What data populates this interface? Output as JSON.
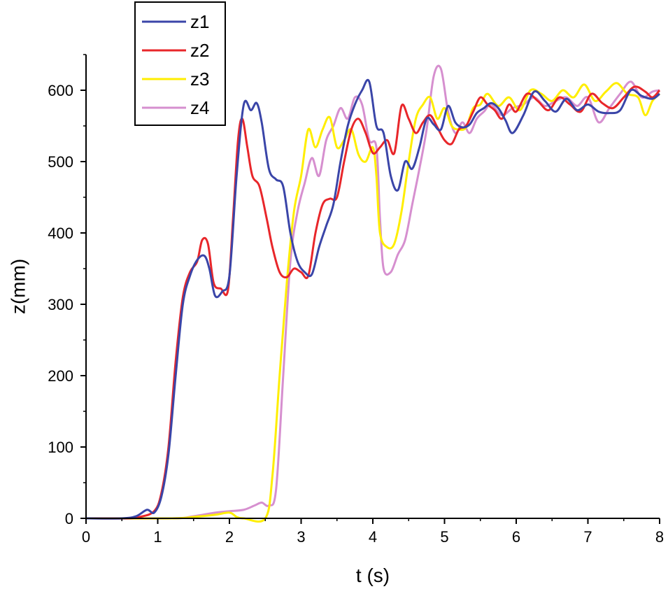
{
  "chart_data": {
    "type": "line",
    "xlabel": "t (s)",
    "ylabel": "z(mm)",
    "xlim": [
      0,
      8
    ],
    "ylim": [
      0,
      650
    ],
    "xticks": [
      0,
      1,
      2,
      3,
      4,
      5,
      6,
      7,
      8
    ],
    "yticks": [
      0,
      100,
      200,
      300,
      400,
      500,
      600
    ],
    "grid": false,
    "legend_position": "top-left",
    "series": [
      {
        "name": "z1",
        "color": "#3a45a8",
        "points": [
          [
            0,
            0
          ],
          [
            0.5,
            0
          ],
          [
            0.7,
            3
          ],
          [
            0.85,
            12
          ],
          [
            0.95,
            8
          ],
          [
            1.05,
            30
          ],
          [
            1.15,
            90
          ],
          [
            1.25,
            200
          ],
          [
            1.35,
            300
          ],
          [
            1.45,
            340
          ],
          [
            1.55,
            362
          ],
          [
            1.65,
            368
          ],
          [
            1.72,
            350
          ],
          [
            1.8,
            312
          ],
          [
            1.9,
            318
          ],
          [
            2.0,
            340
          ],
          [
            2.1,
            480
          ],
          [
            2.2,
            580
          ],
          [
            2.3,
            572
          ],
          [
            2.38,
            582
          ],
          [
            2.45,
            555
          ],
          [
            2.55,
            490
          ],
          [
            2.65,
            475
          ],
          [
            2.75,
            465
          ],
          [
            2.85,
            400
          ],
          [
            2.95,
            360
          ],
          [
            3.05,
            345
          ],
          [
            3.15,
            342
          ],
          [
            3.25,
            380
          ],
          [
            3.35,
            410
          ],
          [
            3.45,
            440
          ],
          [
            3.55,
            500
          ],
          [
            3.65,
            550
          ],
          [
            3.75,
            580
          ],
          [
            3.85,
            600
          ],
          [
            3.95,
            612
          ],
          [
            4.05,
            550
          ],
          [
            4.15,
            540
          ],
          [
            4.25,
            480
          ],
          [
            4.35,
            460
          ],
          [
            4.45,
            500
          ],
          [
            4.55,
            490
          ],
          [
            4.65,
            520
          ],
          [
            4.75,
            560
          ],
          [
            4.85,
            552
          ],
          [
            4.95,
            545
          ],
          [
            5.05,
            578
          ],
          [
            5.15,
            555
          ],
          [
            5.25,
            548
          ],
          [
            5.35,
            552
          ],
          [
            5.45,
            568
          ],
          [
            5.55,
            575
          ],
          [
            5.65,
            582
          ],
          [
            5.75,
            575
          ],
          [
            5.85,
            558
          ],
          [
            5.95,
            540
          ],
          [
            6.1,
            565
          ],
          [
            6.25,
            598
          ],
          [
            6.4,
            585
          ],
          [
            6.55,
            570
          ],
          [
            6.7,
            588
          ],
          [
            6.85,
            572
          ],
          [
            7.0,
            580
          ],
          [
            7.15,
            570
          ],
          [
            7.3,
            568
          ],
          [
            7.45,
            572
          ],
          [
            7.6,
            600
          ],
          [
            7.75,
            592
          ],
          [
            7.9,
            588
          ],
          [
            8.0,
            595
          ]
        ]
      },
      {
        "name": "z2",
        "color": "#e8262a",
        "points": [
          [
            0,
            0
          ],
          [
            0.55,
            0
          ],
          [
            0.75,
            2
          ],
          [
            0.95,
            10
          ],
          [
            1.05,
            35
          ],
          [
            1.15,
            100
          ],
          [
            1.25,
            220
          ],
          [
            1.35,
            310
          ],
          [
            1.45,
            345
          ],
          [
            1.55,
            360
          ],
          [
            1.62,
            390
          ],
          [
            1.7,
            385
          ],
          [
            1.78,
            330
          ],
          [
            1.88,
            322
          ],
          [
            1.98,
            320
          ],
          [
            2.05,
            420
          ],
          [
            2.12,
            530
          ],
          [
            2.18,
            560
          ],
          [
            2.25,
            520
          ],
          [
            2.32,
            480
          ],
          [
            2.42,
            465
          ],
          [
            2.52,
            420
          ],
          [
            2.6,
            380
          ],
          [
            2.7,
            345
          ],
          [
            2.8,
            338
          ],
          [
            2.9,
            350
          ],
          [
            3.0,
            345
          ],
          [
            3.1,
            340
          ],
          [
            3.2,
            400
          ],
          [
            3.3,
            440
          ],
          [
            3.4,
            448
          ],
          [
            3.5,
            450
          ],
          [
            3.6,
            500
          ],
          [
            3.7,
            545
          ],
          [
            3.8,
            560
          ],
          [
            3.9,
            540
          ],
          [
            4.0,
            512
          ],
          [
            4.1,
            520
          ],
          [
            4.2,
            530
          ],
          [
            4.3,
            512
          ],
          [
            4.4,
            578
          ],
          [
            4.5,
            560
          ],
          [
            4.6,
            540
          ],
          [
            4.7,
            555
          ],
          [
            4.8,
            565
          ],
          [
            4.9,
            548
          ],
          [
            5.0,
            530
          ],
          [
            5.1,
            525
          ],
          [
            5.2,
            545
          ],
          [
            5.3,
            550
          ],
          [
            5.4,
            570
          ],
          [
            5.5,
            590
          ],
          [
            5.6,
            580
          ],
          [
            5.7,
            572
          ],
          [
            5.8,
            560
          ],
          [
            5.9,
            580
          ],
          [
            6.0,
            570
          ],
          [
            6.15,
            595
          ],
          [
            6.3,
            585
          ],
          [
            6.45,
            572
          ],
          [
            6.6,
            590
          ],
          [
            6.75,
            580
          ],
          [
            6.9,
            570
          ],
          [
            7.05,
            595
          ],
          [
            7.2,
            582
          ],
          [
            7.35,
            575
          ],
          [
            7.5,
            590
          ],
          [
            7.65,
            605
          ],
          [
            7.8,
            598
          ],
          [
            7.9,
            590
          ],
          [
            8.0,
            600
          ]
        ]
      },
      {
        "name": "z3",
        "color": "#ffee00",
        "points": [
          [
            0,
            0
          ],
          [
            1.2,
            0
          ],
          [
            1.5,
            2
          ],
          [
            1.8,
            5
          ],
          [
            2.0,
            8
          ],
          [
            2.1,
            2
          ],
          [
            2.2,
            0
          ],
          [
            2.5,
            0
          ],
          [
            2.6,
            60
          ],
          [
            2.7,
            200
          ],
          [
            2.8,
            330
          ],
          [
            2.9,
            430
          ],
          [
            3.0,
            480
          ],
          [
            3.1,
            545
          ],
          [
            3.2,
            520
          ],
          [
            3.3,
            545
          ],
          [
            3.4,
            562
          ],
          [
            3.5,
            520
          ],
          [
            3.6,
            530
          ],
          [
            3.7,
            545
          ],
          [
            3.8,
            510
          ],
          [
            3.9,
            500
          ],
          [
            4.0,
            520
          ],
          [
            4.05,
            480
          ],
          [
            4.1,
            400
          ],
          [
            4.2,
            380
          ],
          [
            4.3,
            385
          ],
          [
            4.4,
            430
          ],
          [
            4.5,
            500
          ],
          [
            4.6,
            560
          ],
          [
            4.7,
            580
          ],
          [
            4.8,
            590
          ],
          [
            4.9,
            560
          ],
          [
            5.0,
            575
          ],
          [
            5.1,
            550
          ],
          [
            5.2,
            545
          ],
          [
            5.3,
            548
          ],
          [
            5.4,
            575
          ],
          [
            5.5,
            580
          ],
          [
            5.6,
            595
          ],
          [
            5.75,
            578
          ],
          [
            5.9,
            590
          ],
          [
            6.05,
            572
          ],
          [
            6.2,
            600
          ],
          [
            6.35,
            595
          ],
          [
            6.5,
            585
          ],
          [
            6.65,
            600
          ],
          [
            6.8,
            590
          ],
          [
            6.95,
            608
          ],
          [
            7.1,
            585
          ],
          [
            7.25,
            598
          ],
          [
            7.4,
            610
          ],
          [
            7.55,
            595
          ],
          [
            7.7,
            590
          ],
          [
            7.8,
            565
          ],
          [
            7.9,
            585
          ],
          [
            8.0,
            595
          ]
        ]
      },
      {
        "name": "z4",
        "color": "#d68fcf",
        "points": [
          [
            0,
            0
          ],
          [
            1.2,
            0
          ],
          [
            1.5,
            3
          ],
          [
            1.8,
            8
          ],
          [
            2.0,
            10
          ],
          [
            2.2,
            12
          ],
          [
            2.35,
            18
          ],
          [
            2.45,
            22
          ],
          [
            2.55,
            18
          ],
          [
            2.65,
            40
          ],
          [
            2.75,
            200
          ],
          [
            2.85,
            360
          ],
          [
            2.95,
            430
          ],
          [
            3.05,
            470
          ],
          [
            3.15,
            505
          ],
          [
            3.25,
            480
          ],
          [
            3.35,
            530
          ],
          [
            3.45,
            550
          ],
          [
            3.55,
            575
          ],
          [
            3.65,
            560
          ],
          [
            3.75,
            590
          ],
          [
            3.85,
            580
          ],
          [
            3.95,
            530
          ],
          [
            4.05,
            520
          ],
          [
            4.1,
            420
          ],
          [
            4.15,
            350
          ],
          [
            4.25,
            345
          ],
          [
            4.35,
            370
          ],
          [
            4.45,
            390
          ],
          [
            4.55,
            440
          ],
          [
            4.65,
            490
          ],
          [
            4.75,
            545
          ],
          [
            4.85,
            620
          ],
          [
            4.95,
            630
          ],
          [
            5.05,
            570
          ],
          [
            5.15,
            540
          ],
          [
            5.25,
            555
          ],
          [
            5.35,
            540
          ],
          [
            5.45,
            560
          ],
          [
            5.55,
            570
          ],
          [
            5.65,
            580
          ],
          [
            5.8,
            565
          ],
          [
            5.95,
            575
          ],
          [
            6.1,
            580
          ],
          [
            6.25,
            590
          ],
          [
            6.4,
            578
          ],
          [
            6.55,
            585
          ],
          [
            6.7,
            590
          ],
          [
            6.85,
            578
          ],
          [
            7.0,
            590
          ],
          [
            7.15,
            555
          ],
          [
            7.3,
            575
          ],
          [
            7.45,
            595
          ],
          [
            7.6,
            612
          ],
          [
            7.75,
            590
          ],
          [
            7.9,
            598
          ],
          [
            8.0,
            600
          ]
        ]
      }
    ]
  }
}
